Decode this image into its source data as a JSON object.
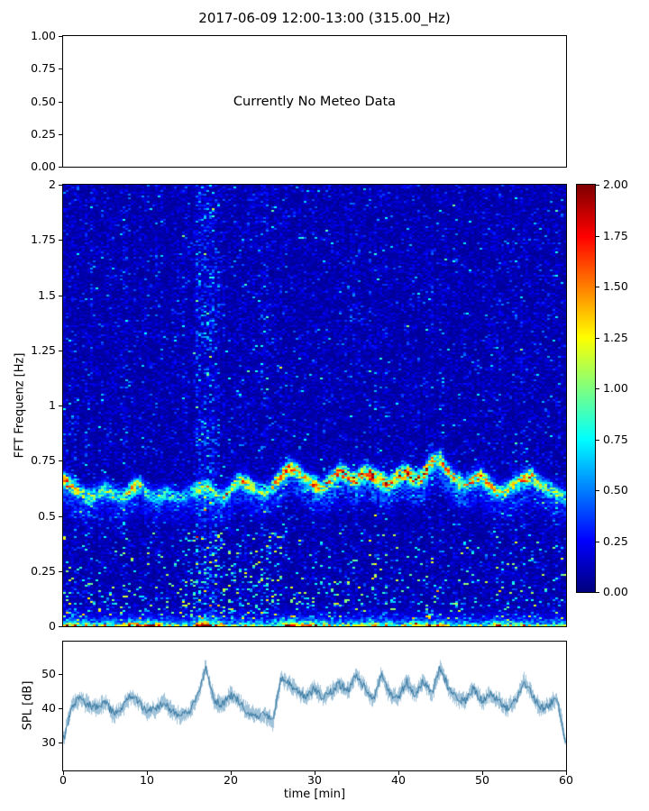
{
  "title": "2017-06-09 12:00-13:00 (315.00_Hz)",
  "chart_data": [
    {
      "panel": "meteo",
      "type": "empty",
      "annotation": "Currently No Meteo Data",
      "ylim": [
        0.0,
        1.0
      ],
      "yticks": [
        "1.00",
        "0.75",
        "0.50",
        "0.25",
        "0.00"
      ],
      "grid": false
    },
    {
      "panel": "spectrogram",
      "type": "heatmap",
      "ylabel": "FFT Frequenz [Hz]",
      "xlim": [
        0,
        60
      ],
      "ylim": [
        0,
        2
      ],
      "yticks": [
        "2",
        "1.75",
        "1.5",
        "1.25",
        "1",
        "0.75",
        "0.5",
        "0.25",
        "0"
      ],
      "colormap": "jet",
      "colorbar_ticks": [
        "2.00",
        "1.75",
        "1.50",
        "1.25",
        "1.00",
        "0.75",
        "0.50",
        "0.25",
        "0.00"
      ],
      "colorbar_range": [
        0,
        2
      ],
      "description": "Mostly dark-blue low-amplitude background noise over 0-2 Hz with vertical striping; a persistent bright (cyan-yellow-red) tonal ridge meanders around 0.55-0.78 Hz; a strong red/orange band hugs 0 Hz; scattered cyan speckles below 0.4 Hz, densest near minutes 14-26; lighter broadband column near minute 16-18.",
      "background_noise_level": 0.13,
      "broadband_stripes_t_min": [
        16.5,
        23.8
      ],
      "ridge": {
        "t_min": [
          0,
          1,
          2,
          3,
          4,
          5,
          6,
          7,
          8,
          9,
          10,
          11,
          12,
          13,
          14,
          15,
          16,
          17,
          18,
          19,
          20,
          21,
          22,
          23,
          24,
          25,
          26,
          27,
          28,
          29,
          30,
          31,
          32,
          33,
          34,
          35,
          36,
          37,
          38,
          39,
          40,
          41,
          42,
          43,
          44,
          45,
          46,
          47,
          48,
          49,
          50,
          51,
          52,
          53,
          54,
          55,
          56,
          57,
          58,
          59,
          60
        ],
        "freq_hz": [
          0.66,
          0.63,
          0.6,
          0.58,
          0.6,
          0.62,
          0.59,
          0.58,
          0.62,
          0.64,
          0.6,
          0.58,
          0.6,
          0.59,
          0.58,
          0.6,
          0.62,
          0.63,
          0.6,
          0.58,
          0.62,
          0.66,
          0.64,
          0.62,
          0.6,
          0.63,
          0.68,
          0.72,
          0.7,
          0.66,
          0.64,
          0.62,
          0.66,
          0.7,
          0.68,
          0.66,
          0.7,
          0.68,
          0.66,
          0.64,
          0.68,
          0.7,
          0.66,
          0.68,
          0.74,
          0.76,
          0.7,
          0.66,
          0.64,
          0.66,
          0.68,
          0.64,
          0.6,
          0.62,
          0.64,
          0.66,
          0.68,
          0.64,
          0.62,
          0.6,
          0.58
        ],
        "intensity": [
          1.4,
          1.2,
          1.0,
          1.1,
          0.9,
          1.0,
          0.8,
          0.9,
          1.3,
          1.1,
          0.8,
          0.7,
          0.8,
          0.7,
          0.6,
          0.7,
          0.9,
          1.0,
          0.9,
          0.8,
          1.0,
          1.1,
          1.2,
          1.0,
          0.9,
          1.1,
          1.3,
          1.5,
          1.4,
          1.2,
          1.3,
          1.2,
          1.4,
          1.5,
          1.6,
          1.4,
          1.5,
          1.8,
          1.6,
          1.4,
          1.6,
          1.7,
          1.5,
          1.6,
          1.5,
          1.4,
          1.3,
          1.4,
          1.2,
          1.3,
          1.4,
          1.2,
          1.0,
          1.1,
          1.2,
          1.4,
          1.3,
          1.1,
          1.0,
          0.9,
          0.8
        ],
        "bottom_band_freq_extent_hz": 0.05,
        "bottom_band_intensity": [
          1.6,
          1.8,
          1.5,
          1.2,
          1.0,
          1.3,
          1.1,
          1.4,
          1.7,
          1.6,
          1.8,
          1.5,
          1.2,
          1.0,
          0.9,
          1.1,
          1.8,
          2.0,
          1.7,
          1.2,
          1.0,
          1.1,
          1.3,
          1.0,
          0.9,
          1.2,
          1.6,
          1.8,
          1.7,
          1.5,
          1.6,
          1.4,
          1.2,
          1.4,
          1.1,
          1.0,
          1.3,
          1.6,
          1.5,
          1.2,
          1.0,
          1.3,
          1.5,
          1.2,
          1.6,
          1.4,
          1.1,
          1.0,
          1.2,
          1.0,
          0.9,
          1.2,
          1.5,
          1.3,
          1.0,
          1.2,
          1.0,
          0.9,
          1.1,
          1.0,
          1.2
        ]
      }
    },
    {
      "panel": "spl",
      "type": "line",
      "ylabel": "SPL [dB]",
      "xlabel": "time [min]",
      "xticks": [
        "0",
        "10",
        "20",
        "30",
        "40",
        "50",
        "60"
      ],
      "xtick_values": [
        0,
        10,
        20,
        30,
        40,
        50,
        60
      ],
      "yticks": [
        "50",
        "40",
        "30"
      ],
      "ytick_values": [
        50,
        40,
        30
      ],
      "xlim": [
        0,
        60
      ],
      "ylim": [
        21.9,
        59.5
      ],
      "color": "#2e7bab",
      "noise_halfwidth_db": 3.2,
      "t_min": [
        0,
        1,
        2,
        3,
        4,
        5,
        6,
        7,
        8,
        9,
        10,
        11,
        12,
        13,
        14,
        15,
        16,
        17,
        18,
        19,
        20,
        21,
        22,
        23,
        24,
        25,
        26,
        27,
        28,
        29,
        30,
        31,
        32,
        33,
        34,
        35,
        36,
        37,
        38,
        39,
        40,
        41,
        42,
        43,
        44,
        45,
        46,
        47,
        48,
        49,
        50,
        51,
        52,
        53,
        54,
        55,
        56,
        57,
        58,
        59,
        60
      ],
      "mean_db": [
        31,
        41,
        43,
        41,
        40,
        42,
        38,
        40,
        44,
        42,
        39,
        40,
        42,
        39,
        38,
        39,
        43,
        52,
        42,
        41,
        44,
        42,
        39,
        38,
        38,
        36,
        49,
        47,
        45,
        43,
        46,
        43,
        45,
        47,
        45,
        50,
        46,
        42,
        50,
        44,
        43,
        48,
        44,
        48,
        44,
        52,
        46,
        43,
        42,
        46,
        42,
        44,
        42,
        40,
        42,
        48,
        44,
        40,
        41,
        43,
        30
      ]
    }
  ]
}
